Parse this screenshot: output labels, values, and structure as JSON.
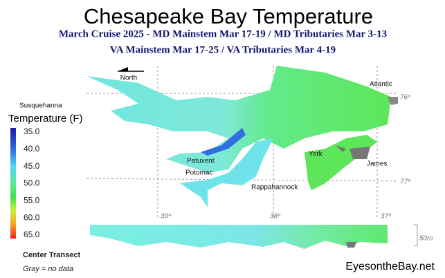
{
  "header": {
    "title": "Chesapeake Bay Temperature",
    "subtitle_lines": [
      "March Cruise 2025 - MD Mainstem Mar 17-19 / MD Tributaries Mar 3-13",
      "VA Mainstem Mar 17-25 /  VA Tributaries Mar 4-19"
    ]
  },
  "map": {
    "north_label": "North",
    "places": [
      "Susquehanna",
      "Patuxent",
      "Potomac",
      "Rappahannock",
      "York",
      "James",
      "Atlantic"
    ],
    "coordinates": [
      "76º",
      "77º",
      "39º",
      "38º",
      "37º"
    ]
  },
  "legend": {
    "title": "Temperature (F)",
    "ticks": [
      "35.0",
      "40.0",
      "45.0",
      "50.0",
      "55.0",
      "60.0",
      "65.0"
    ]
  },
  "transect": {
    "title": "Center Transect",
    "depth_label": "50m",
    "note": "Gray = no data"
  },
  "footer": {
    "site": "EyesontheBay.net"
  }
}
